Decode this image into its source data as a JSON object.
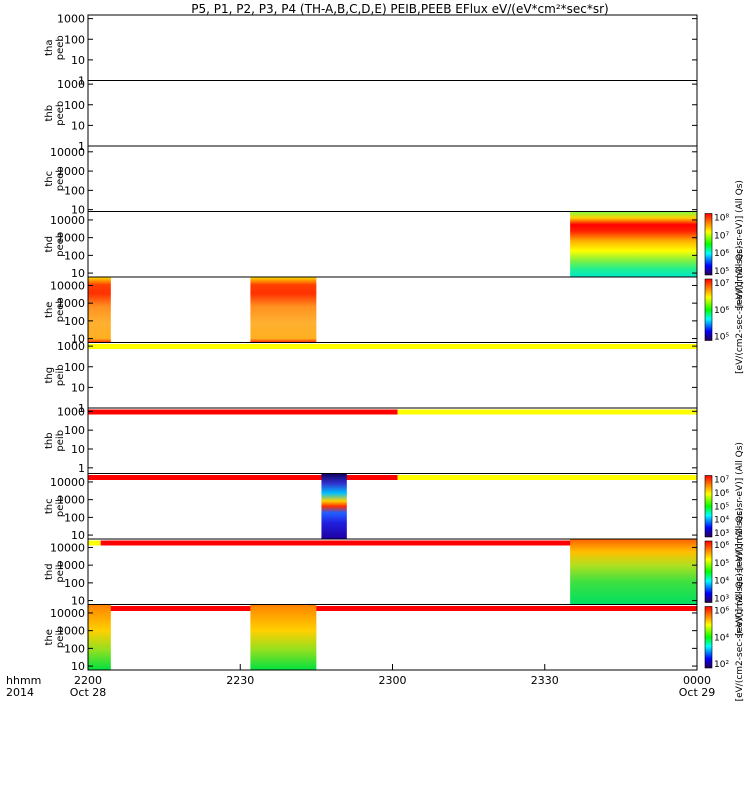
{
  "chart_data": {
    "type": "heatmap",
    "title": "P5, P1, P2, P3, P4 (TH-A,B,C,D,E) PEIB,PEEB EFlux eV/(eV*cm²*sec*sr)",
    "x_ticks": [
      "2200",
      "2230",
      "2300",
      "2330",
      "0000"
    ],
    "x_dates": [
      "Oct 28",
      "",
      "",
      "",
      "Oct 29"
    ],
    "x_minutes": [
      0,
      30,
      60,
      90,
      120
    ],
    "x_label_lines": [
      "hhmm",
      "2014"
    ],
    "panels": [
      {
        "probe": "tha",
        "product": "peeb",
        "yticks": [
          "1000",
          "100",
          "10",
          "1"
        ],
        "yrange": [
          1,
          1500
        ],
        "blocks": [],
        "flag": null
      },
      {
        "probe": "thb",
        "product": "peeb",
        "yticks": [
          "1000",
          "100",
          "10",
          "1"
        ],
        "yrange": [
          1,
          1500
        ],
        "blocks": [],
        "flag": null
      },
      {
        "probe": "thc",
        "product": "peeb",
        "yticks": [
          "10000",
          "1000",
          "100",
          "10"
        ],
        "yrange": [
          8,
          20000
        ],
        "blocks": [],
        "flag": null
      },
      {
        "probe": "thd",
        "product": "peeb",
        "yticks": [
          "10000",
          "1000",
          "100",
          "10"
        ],
        "yrange": [
          6,
          30000
        ],
        "blocks": [
          {
            "start": 95,
            "end": 120,
            "palette": "thd_peeb"
          }
        ],
        "colorbar": {
          "label": "[eV/(cm2-sec-sr-eV)] (All Qs)",
          "ticks": [
            "10⁸",
            "10⁷",
            "10⁶",
            "10⁵"
          ]
        },
        "flag": null
      },
      {
        "probe": "the",
        "product": "peeb",
        "yticks": [
          "10000",
          "1000",
          "100",
          "10"
        ],
        "yrange": [
          6,
          30000
        ],
        "blocks": [
          {
            "start": 0,
            "end": 4.5,
            "palette": "the_peeb"
          },
          {
            "start": 32,
            "end": 45,
            "palette": "the_peeb"
          }
        ],
        "colorbar": {
          "label": "[eV/(cm2-sec-sr-eV)] (All Qs)",
          "ticks": [
            "10⁷",
            "10⁶",
            "10⁵"
          ]
        },
        "flag": [
          {
            "start": 0,
            "end": 120,
            "color": "#ffff00"
          }
        ]
      },
      {
        "probe": "thg",
        "product": "peib",
        "yticks": [
          "1000",
          "100",
          "10",
          "1"
        ],
        "yrange": [
          1,
          1500
        ],
        "blocks": [],
        "flag": [
          {
            "start": 0,
            "end": 61,
            "color": "#ff0000"
          },
          {
            "start": 61,
            "end": 120,
            "color": "#ffff00"
          }
        ]
      },
      {
        "probe": "thb",
        "product": "peib",
        "yticks": [
          "1000",
          "100",
          "10",
          "1"
        ],
        "yrange": [
          0.5,
          1500
        ],
        "blocks": [],
        "flag": [
          {
            "start": 0,
            "end": 61,
            "color": "#ff0000"
          },
          {
            "start": 61,
            "end": 120,
            "color": "#ffff00"
          }
        ]
      },
      {
        "probe": "thc",
        "product": "peib",
        "yticks": [
          "10000",
          "1000",
          "100",
          "10"
        ],
        "yrange": [
          6,
          30000
        ],
        "blocks": [
          {
            "start": 46,
            "end": 51,
            "palette": "thc_peib"
          }
        ],
        "colorbar": {
          "label": "[eV/(cm2-sec-sr-eV)] (All Qs)",
          "ticks": [
            "10⁷",
            "10⁶",
            "10⁵",
            "10⁴",
            "10³"
          ]
        },
        "flag": [
          {
            "start": 0,
            "end": 2.5,
            "color": "#ffff00"
          },
          {
            "start": 2.5,
            "end": 120,
            "color": "#ff0000"
          }
        ]
      },
      {
        "probe": "thd",
        "product": "peib",
        "yticks": [
          "10000",
          "1000",
          "100",
          "10"
        ],
        "yrange": [
          6,
          30000
        ],
        "blocks": [
          {
            "start": 95,
            "end": 120,
            "palette": "thd_peib"
          }
        ],
        "colorbar": {
          "label": "[eV/(cm2-sec-sr-eV)] (All Qs)",
          "ticks": [
            "10⁶",
            "10⁵",
            "10⁴",
            "10³"
          ]
        },
        "flag": [
          {
            "start": 0,
            "end": 120,
            "color": "#ff0000"
          }
        ]
      },
      {
        "probe": "the",
        "product": "peib",
        "yticks": [
          "10000",
          "1000",
          "100",
          "10"
        ],
        "yrange": [
          6,
          30000
        ],
        "blocks": [
          {
            "start": 0,
            "end": 4.5,
            "palette": "the_peib"
          },
          {
            "start": 32,
            "end": 45,
            "palette": "the_peib"
          }
        ],
        "colorbar": {
          "label": "[eV/(cm2-sec-sr-eV)] (All Qs)",
          "ticks": [
            "10⁶",
            "10⁴",
            "10²"
          ]
        },
        "flag": null
      }
    ]
  }
}
